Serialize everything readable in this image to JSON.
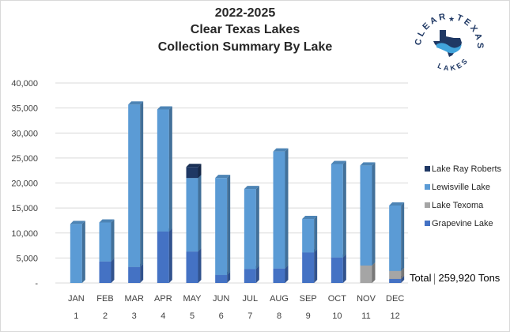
{
  "title_lines": [
    "2022-2025",
    "Clear Texas Lakes",
    "Collection Summary By Lake"
  ],
  "logo": {
    "brand_word_left": "CLEAR",
    "brand_word_right": "TEXAS",
    "brand_word_bottom": "LAKES",
    "colors": {
      "navy": "#1f3864",
      "lake": "#41a4dc"
    }
  },
  "total": {
    "label": "Total",
    "value": "259,920 Tons"
  },
  "chart_data": {
    "type": "bar",
    "stacked": true,
    "categories": [
      "JAN",
      "FEB",
      "MAR",
      "APR",
      "MAY",
      "JUN",
      "JUL",
      "AUG",
      "SEP",
      "OCT",
      "NOV",
      "DEC"
    ],
    "category_numbers": [
      "1",
      "2",
      "3",
      "4",
      "5",
      "6",
      "7",
      "8",
      "9",
      "10",
      "11",
      "12"
    ],
    "ylim": [
      0,
      40000
    ],
    "yticks": [
      0,
      5000,
      10000,
      15000,
      20000,
      25000,
      30000,
      35000,
      40000
    ],
    "ytick_labels": [
      "-",
      "5,000",
      "10,000",
      "15,000",
      "20,000",
      "25,000",
      "30,000",
      "35,000",
      "40,000"
    ],
    "grid": true,
    "legend_position": "right",
    "series": [
      {
        "name": "Grapevine Lake",
        "color": "#4472c4",
        "values": [
          0,
          4300,
          3200,
          10300,
          6300,
          1600,
          2800,
          2900,
          6100,
          5100,
          0,
          800
        ]
      },
      {
        "name": "Lake Texoma",
        "color": "#a5a5a5",
        "values": [
          0,
          0,
          0,
          0,
          0,
          0,
          0,
          0,
          0,
          0,
          3500,
          1600
        ]
      },
      {
        "name": "Lewisville Lake",
        "color": "#5b9bd5",
        "values": [
          11800,
          7800,
          32500,
          24400,
          14700,
          19400,
          16000,
          23400,
          6700,
          18700,
          20000,
          13100
        ]
      },
      {
        "name": "Lake Ray Roberts",
        "color": "#1f3864",
        "values": [
          0,
          0,
          0,
          0,
          2200,
          0,
          0,
          0,
          0,
          0,
          0,
          0
        ]
      }
    ]
  }
}
